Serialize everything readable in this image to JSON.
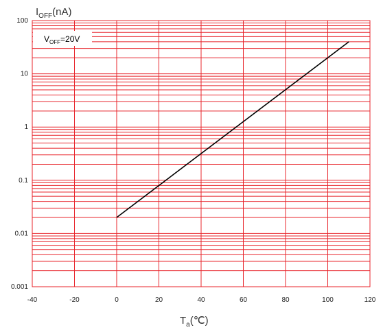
{
  "chart_data": {
    "type": "line",
    "ylabel": {
      "main": "I",
      "sub": "OFF",
      "unit": "(nA)"
    },
    "xlabel": {
      "main": "T",
      "sub": "a",
      "unit": "(℃)"
    },
    "xlim": [
      -40,
      120
    ],
    "ylim": [
      0.001,
      100
    ],
    "yscale": "log",
    "grid": true,
    "grid_color": "#e8242b",
    "line_color": "#000000",
    "xticks": [
      -40,
      -20,
      0,
      20,
      40,
      60,
      80,
      100,
      120
    ],
    "xtick_labels": [
      "-40",
      "-20",
      "0",
      "20",
      "40",
      "60",
      "80",
      "100",
      "120"
    ],
    "yticks": [
      0.001,
      0.01,
      0.1,
      1,
      10,
      100
    ],
    "ytick_labels": [
      "0.001",
      "0.01",
      "0.1",
      "1",
      "10",
      "100"
    ],
    "annotation": {
      "main": "V",
      "sub": "OFF",
      "rest": "=20V"
    },
    "series": [
      {
        "x": [
          0,
          110
        ],
        "y": [
          0.02,
          40
        ]
      }
    ]
  }
}
